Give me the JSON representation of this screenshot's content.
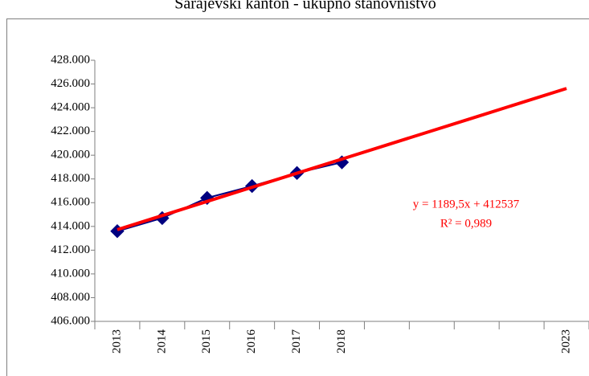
{
  "chart_data": {
    "type": "line",
    "title": "Sarajevski kanton - ukupno stanovništvo",
    "categories": [
      "2013",
      "2014",
      "2015",
      "2016",
      "2017",
      "2018",
      null,
      null,
      null,
      null,
      "2023"
    ],
    "series": [
      {
        "color": "#000080",
        "values": [
          413600,
          414700,
          416400,
          417400,
          418500,
          419400,
          null,
          null,
          null,
          null,
          null
        ]
      },
      {
        "type": "trendline",
        "color": "#ff0000",
        "values": [
          413726.5,
          414916,
          416105.5,
          417295,
          418484.5,
          419674,
          420863.5,
          422053,
          423242.5,
          424432,
          425621.5
        ]
      }
    ],
    "annotations": [
      "y = 1189,5x + 412537",
      "R² = 0,989"
    ],
    "annotation_color": "#ff0000",
    "ylim": [
      406000,
      428000
    ],
    "yticks": [
      {
        "value": 406000,
        "label": "406.000"
      },
      {
        "value": 408000,
        "label": "408.000"
      },
      {
        "value": 410000,
        "label": "410.000"
      },
      {
        "value": 412000,
        "label": "412.000"
      },
      {
        "value": 414000,
        "label": "414.000"
      },
      {
        "value": 416000,
        "label": "416.000"
      },
      {
        "value": 418000,
        "label": "418.000"
      },
      {
        "value": 420000,
        "label": "420.000"
      },
      {
        "value": 422000,
        "label": "422.000"
      },
      {
        "value": 424000,
        "label": "424.000"
      },
      {
        "value": 426000,
        "label": "426.000"
      },
      {
        "value": 428000,
        "label": "428.000"
      }
    ],
    "grid": false
  }
}
